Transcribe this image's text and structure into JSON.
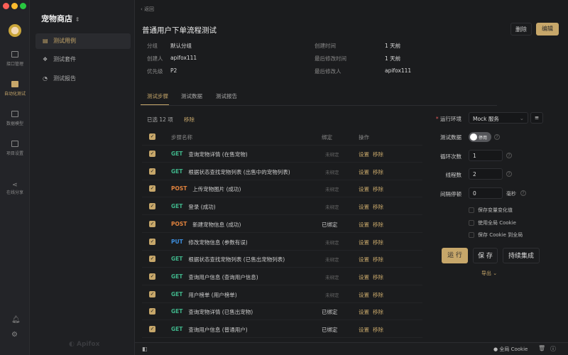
{
  "window": {
    "controls": [
      "close",
      "minimize",
      "maximize"
    ]
  },
  "iconbar": {
    "items": [
      {
        "label": "接口管理",
        "icon": "api-icon"
      },
      {
        "label": "自动化测试",
        "icon": "automation-icon",
        "active": true
      },
      {
        "label": "数据模型",
        "icon": "data-model-icon"
      },
      {
        "label": "项目设置",
        "icon": "settings-icon"
      },
      {
        "label": "在线分享",
        "icon": "share-icon"
      }
    ]
  },
  "sidebar": {
    "project": "宠物商店",
    "items": [
      {
        "label": "测试用例",
        "active": true
      },
      {
        "label": "测试套件"
      },
      {
        "label": "测试报告"
      }
    ],
    "logo": "Apifox"
  },
  "header": {
    "back": "‹ 返回",
    "title": "普通用户下单流程测试",
    "delete": "删除",
    "edit": "编辑"
  },
  "meta": {
    "group_label": "分组",
    "group": "默认分组",
    "creator_label": "创建人",
    "creator": "apifox111",
    "priority_label": "优先级",
    "priority": "P2",
    "created_label": "创建时间",
    "created": "1 天前",
    "modified_label": "最后修改时间",
    "modified": "1 天前",
    "modifier_label": "最后修改人",
    "modifier": "apifox111"
  },
  "tabs": [
    "测试步骤",
    "测试数据",
    "测试报告"
  ],
  "steps": {
    "selected": "已选 12 项",
    "remove": "移除",
    "headers": {
      "name": "步骤名称",
      "bind": "绑定",
      "ops": "操作"
    },
    "op_set": "设置",
    "op_remove": "移除",
    "rows": [
      {
        "method": "GET",
        "name": "查询宠物详情 (在售宠物)",
        "bind": "未绑定"
      },
      {
        "method": "GET",
        "name": "根据状态查找宠物列表 (出售中的宠物列表)",
        "bind": "未绑定"
      },
      {
        "method": "POST",
        "name": "上传宠物图片 (成功)",
        "bind": "未绑定"
      },
      {
        "method": "GET",
        "name": "登录 (成功)",
        "bind": "未绑定"
      },
      {
        "method": "POST",
        "name": "新建宠物信息 (成功)",
        "bind": "已绑定"
      },
      {
        "method": "PUT",
        "name": "修改宠物信息 (参数有误)",
        "bind": "未绑定"
      },
      {
        "method": "GET",
        "name": "根据状态查找宠物列表 (已售出宠物列表)",
        "bind": "未绑定"
      },
      {
        "method": "GET",
        "name": "查询用户信息 (查询用户信息)",
        "bind": "未绑定"
      },
      {
        "method": "GET",
        "name": "用户榜单 (用户榜单)",
        "bind": "未绑定"
      },
      {
        "method": "GET",
        "name": "查询宠物详情 (已售出宠物)",
        "bind": "已绑定"
      },
      {
        "method": "GET",
        "name": "查询用户信息 (普通用户)",
        "bind": "已绑定"
      }
    ]
  },
  "method_colors": {
    "GET": "#3fb58a",
    "POST": "#e0823d",
    "PUT": "#3c8fe0"
  },
  "run": {
    "env_label": "运行环境",
    "env": "Mock 服务",
    "data_label": "测试数据",
    "data_toggle": "停用",
    "loops_label": "循环次数",
    "loops": "1",
    "threads_label": "线程数",
    "threads": "2",
    "interval_label": "间隔停顿",
    "interval": "0",
    "interval_unit": "毫秒",
    "opt1": "保存变量变化值",
    "opt2": "使用全局 Cookie",
    "opt3": "保存 Cookie 到全局",
    "run": "运 行",
    "save": "保 存",
    "ci": "持续集成",
    "export": "导出 ⌄"
  },
  "status": {
    "cookie": "全局 Cookie"
  },
  "accent": "#c7a76a"
}
